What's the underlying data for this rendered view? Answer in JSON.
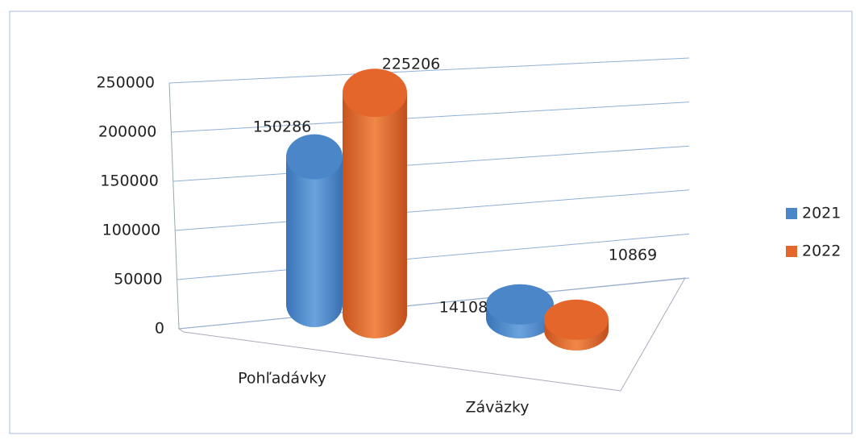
{
  "chart_data": {
    "type": "bar",
    "categories": [
      "Pohľadávky",
      "Záväzky"
    ],
    "series": [
      {
        "name": "2021",
        "color": "#4a86c8",
        "values": [
          150286,
          14108
        ]
      },
      {
        "name": "2022",
        "color": "#e5662a",
        "values": [
          225206,
          10869
        ]
      }
    ],
    "ylim": [
      0,
      250000
    ],
    "yticks": [
      0,
      50000,
      100000,
      150000,
      200000,
      250000
    ],
    "grid": true,
    "legend": "right"
  }
}
